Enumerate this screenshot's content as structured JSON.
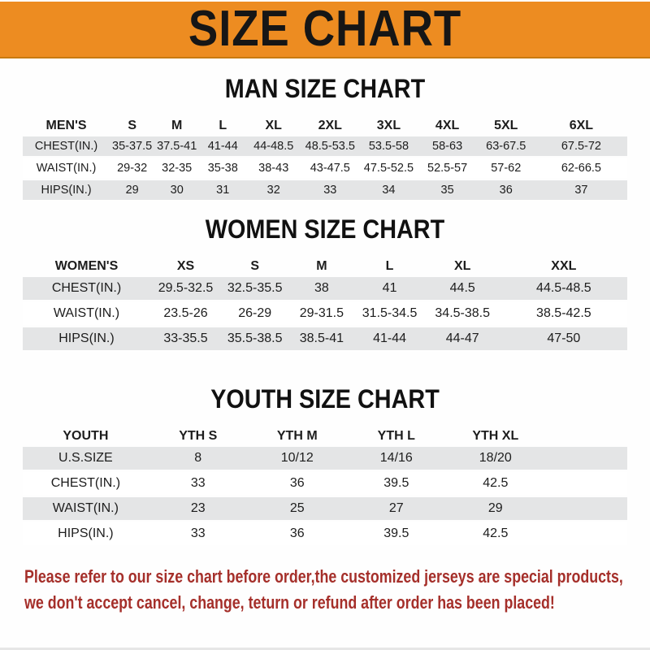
{
  "banner": {
    "title": "SIZE CHART",
    "bg_color": "#ED8C21",
    "text_color": "#161616"
  },
  "sections": {
    "men": {
      "heading": "MAN SIZE CHART"
    },
    "women": {
      "heading": "WOMEN SIZE CHART"
    },
    "youth": {
      "heading": "YOUTH SIZE CHART"
    }
  },
  "tables": {
    "men": {
      "label": "MEN'S",
      "columns": [
        "S",
        "M",
        "L",
        "XL",
        "2XL",
        "3XL",
        "4XL",
        "5XL",
        "6XL"
      ],
      "rows": [
        {
          "label": "CHEST(IN.)",
          "values": [
            "35-37.5",
            "37.5-41",
            "41-44",
            "44-48.5",
            "48.5-53.5",
            "53.5-58",
            "58-63",
            "63-67.5",
            "67.5-72"
          ]
        },
        {
          "label": "WAIST(IN.)",
          "values": [
            "29-32",
            "32-35",
            "35-38",
            "38-43",
            "43-47.5",
            "47.5-52.5",
            "52.5-57",
            "57-62",
            "62-66.5"
          ]
        },
        {
          "label": "HIPS(IN.)",
          "values": [
            "29",
            "30",
            "31",
            "32",
            "33",
            "34",
            "35",
            "36",
            "37"
          ]
        }
      ],
      "header_bg": "#191919",
      "stripe_color": "#e4e5e6"
    },
    "women": {
      "label": "WOMEN'S",
      "columns": [
        "XS",
        "S",
        "M",
        "L",
        "XL",
        "XXL"
      ],
      "rows": [
        {
          "label": "CHEST(IN.)",
          "values": [
            "29.5-32.5",
            "32.5-35.5",
            "38",
            "41",
            "44.5",
            "44.5-48.5"
          ]
        },
        {
          "label": "WAIST(IN.)",
          "values": [
            "23.5-26",
            "26-29",
            "29-31.5",
            "31.5-34.5",
            "34.5-38.5",
            "38.5-42.5"
          ]
        },
        {
          "label": "HIPS(IN.)",
          "values": [
            "33-35.5",
            "35.5-38.5",
            "38.5-41",
            "41-44",
            "44-47",
            "47-50"
          ]
        }
      ],
      "header_bg": "#191919",
      "stripe_color": "#e4e5e6"
    },
    "youth": {
      "label": "YOUTH",
      "spacer": true,
      "columns": [
        "YTH S",
        "YTH M",
        "YTH L",
        "YTH XL"
      ],
      "rows": [
        {
          "label": "U.S.SIZE",
          "values": [
            "8",
            "10/12",
            "14/16",
            "18/20"
          ]
        },
        {
          "label": "CHEST(IN.)",
          "values": [
            "33",
            "36",
            "39.5",
            "42.5"
          ]
        },
        {
          "label": "WAIST(IN.)",
          "values": [
            "23",
            "25",
            "27",
            "29"
          ]
        },
        {
          "label": "HIPS(IN.)",
          "values": [
            "33",
            "36",
            "39.5",
            "42.5"
          ]
        }
      ],
      "header_bg": "#191919",
      "stripe_color": "#e4e5e6"
    }
  },
  "note": {
    "color": "#a52f2a",
    "lines": [
      "Please refer to our size chart before order,the customized jerseys are special products,",
      "we don't accept cancel, change, teturn or refund after order has been placed!"
    ]
  }
}
